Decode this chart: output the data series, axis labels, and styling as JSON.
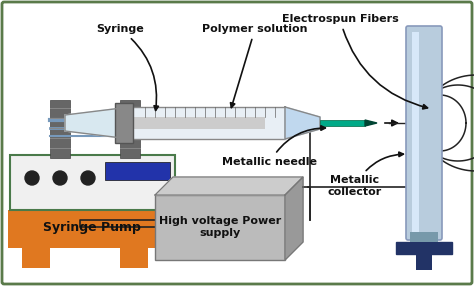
{
  "background_color": "#ffffff",
  "border_color": "#5a7a4a",
  "labels": {
    "syringe": "Syringe",
    "polymer": "Polymer solution",
    "fibers": "Electrospun Fibers",
    "needle": "Metallic needle",
    "pump": "Syringe Pump",
    "hv": "High voltage Power\nsupply",
    "collector": "Metallic\ncollector"
  },
  "pump_body_color": "#f0f0f0",
  "pump_body_border": "#4a7a4a",
  "pump_base_color": "#e07820",
  "pump_feet_color": "#e07820",
  "pump_display_color": "#2233aa",
  "pump_dot_color": "#222222",
  "syringe_body_color": "#e8eff5",
  "syringe_plunger_color": "#aaaaaa",
  "syringe_holder_color": "#666666",
  "needle_color": "#00aa88",
  "collector_body_color": "#b8ccdd",
  "collector_highlight_color": "#ddeeff",
  "collector_stand_color": "#223366",
  "hv_box_color": "#bbbbbb",
  "hv_top_color": "#cccccc",
  "hv_side_color": "#999999",
  "fiber_color": "#222222",
  "wire_color": "#222222",
  "arrow_color": "#111111"
}
